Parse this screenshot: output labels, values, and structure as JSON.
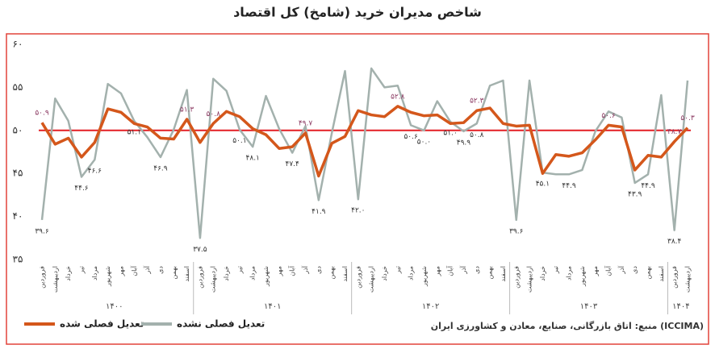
{
  "chart_data": {
    "type": "line",
    "title": "شاخص مدیران خرید (شامخ) کل اقتصاد",
    "source": "منبع: اتاق بازرگانی، صنایع، معادن و کشاورزی ایران (ICCIMA)",
    "categories": [
      "فروردین",
      "اردیبهشت",
      "خرداد",
      "تیر",
      "مرداد",
      "شهریور",
      "مهر",
      "آبان",
      "آذر",
      "دی",
      "بهمن",
      "اسفند",
      "فروردین",
      "اردیبهشت",
      "خرداد",
      "تیر",
      "مرداد",
      "شهریور",
      "مهر",
      "آبان",
      "آذر",
      "دی",
      "بهمن",
      "اسفند",
      "فروردین",
      "اردیبهشت",
      "خرداد",
      "تیر",
      "مرداد",
      "شهریور",
      "مهر",
      "آبان",
      "آذر",
      "دی",
      "بهمن",
      "اسفند",
      "فروردین",
      "اردیبهشت",
      "خرداد",
      "تیر",
      "مرداد",
      "شهریور",
      "مهر",
      "آبان",
      "آذر",
      "دی",
      "بهمن",
      "اسفند",
      "فروردین",
      "اردیبهشت"
    ],
    "year_labels": [
      "۱۴۰۰",
      "۱۴۰۱",
      "۱۴۰۲",
      "۱۴۰۳",
      "۱۴۰۴"
    ],
    "series": [
      {
        "name": "تعدیل فصلی نشده",
        "color": "#a3b1ad",
        "values": [
          39.6,
          53.7,
          51.1,
          44.6,
          46.6,
          55.4,
          54.3,
          51.1,
          49.2,
          46.9,
          50.1,
          54.7,
          37.5,
          56.0,
          54.6,
          50.1,
          48.1,
          54.0,
          50.2,
          47.4,
          50.5,
          41.9,
          49.7,
          56.9,
          42.0,
          57.2,
          55.0,
          55.2,
          50.6,
          50.0,
          53.4,
          51.0,
          49.9,
          50.8,
          55.2,
          55.8,
          39.6,
          55.8,
          45.1,
          44.9,
          44.9,
          45.4,
          49.9,
          52.2,
          51.5,
          43.9,
          44.9,
          54.1,
          38.4,
          55.8
        ],
        "value_labels": [
          "۳۹.۶",
          null,
          null,
          "۴۴.۶",
          "۴۶.۶",
          null,
          null,
          "۵۱.۱",
          null,
          "۴۶.۹",
          null,
          null,
          "۳۷.۵",
          null,
          null,
          "۵۰.۱",
          "۴۸.۱",
          null,
          null,
          "۴۷.۴",
          null,
          "۴۱.۹",
          null,
          null,
          "۴۲.۰",
          null,
          null,
          null,
          "۵۰.۶",
          "۵۰.۰",
          null,
          "۵۱.۰",
          "۴۹.۹",
          "۵۰.۸",
          null,
          null,
          "۳۹.۶",
          null,
          "۴۵.۱",
          null,
          "۴۴.۹",
          null,
          null,
          null,
          null,
          "۴۳.۹",
          "۴۴.۹",
          null,
          "۳۸.۴",
          null
        ]
      },
      {
        "name": "تعدیل فصلی شده",
        "color": "#d4571b",
        "values": [
          50.9,
          48.4,
          49.1,
          46.9,
          48.6,
          52.5,
          52.1,
          50.8,
          50.4,
          49.1,
          49.0,
          51.3,
          48.6,
          50.8,
          52.2,
          51.6,
          50.2,
          49.5,
          47.9,
          48.1,
          49.7,
          44.7,
          48.5,
          49.3,
          52.3,
          51.8,
          51.6,
          52.8,
          52.1,
          51.7,
          51.8,
          50.8,
          50.9,
          52.3,
          52.6,
          50.8,
          50.5,
          50.6,
          45.0,
          47.2,
          47.0,
          47.4,
          48.9,
          50.6,
          50.4,
          45.4,
          47.1,
          46.9,
          48.7,
          50.3
        ],
        "value_labels": [
          "۵۰.۹",
          null,
          null,
          null,
          null,
          null,
          null,
          null,
          null,
          null,
          null,
          "۵۱.۳",
          null,
          "۵۰.۸",
          null,
          null,
          null,
          null,
          null,
          null,
          "۴۹.۷",
          null,
          null,
          null,
          null,
          null,
          null,
          "۵۲.۸",
          null,
          null,
          null,
          null,
          null,
          "۵۲.۳",
          null,
          null,
          null,
          null,
          null,
          null,
          null,
          null,
          null,
          "۵۰.۶",
          null,
          null,
          null,
          null,
          "۴۸.۷",
          "۵۰.۳"
        ]
      }
    ],
    "reference_line": 50,
    "reference_color": "#e31e24",
    "ylim": [
      35,
      60
    ],
    "yticks": [
      {
        "value": 35,
        "label": "۳۵"
      },
      {
        "value": 40,
        "label": "۴۰"
      },
      {
        "value": 45,
        "label": "۴۵"
      },
      {
        "value": 50,
        "label": "۵۰"
      },
      {
        "value": 55,
        "label": "۵۵"
      },
      {
        "value": 60,
        "label": "۶۰"
      }
    ],
    "grid": false
  }
}
